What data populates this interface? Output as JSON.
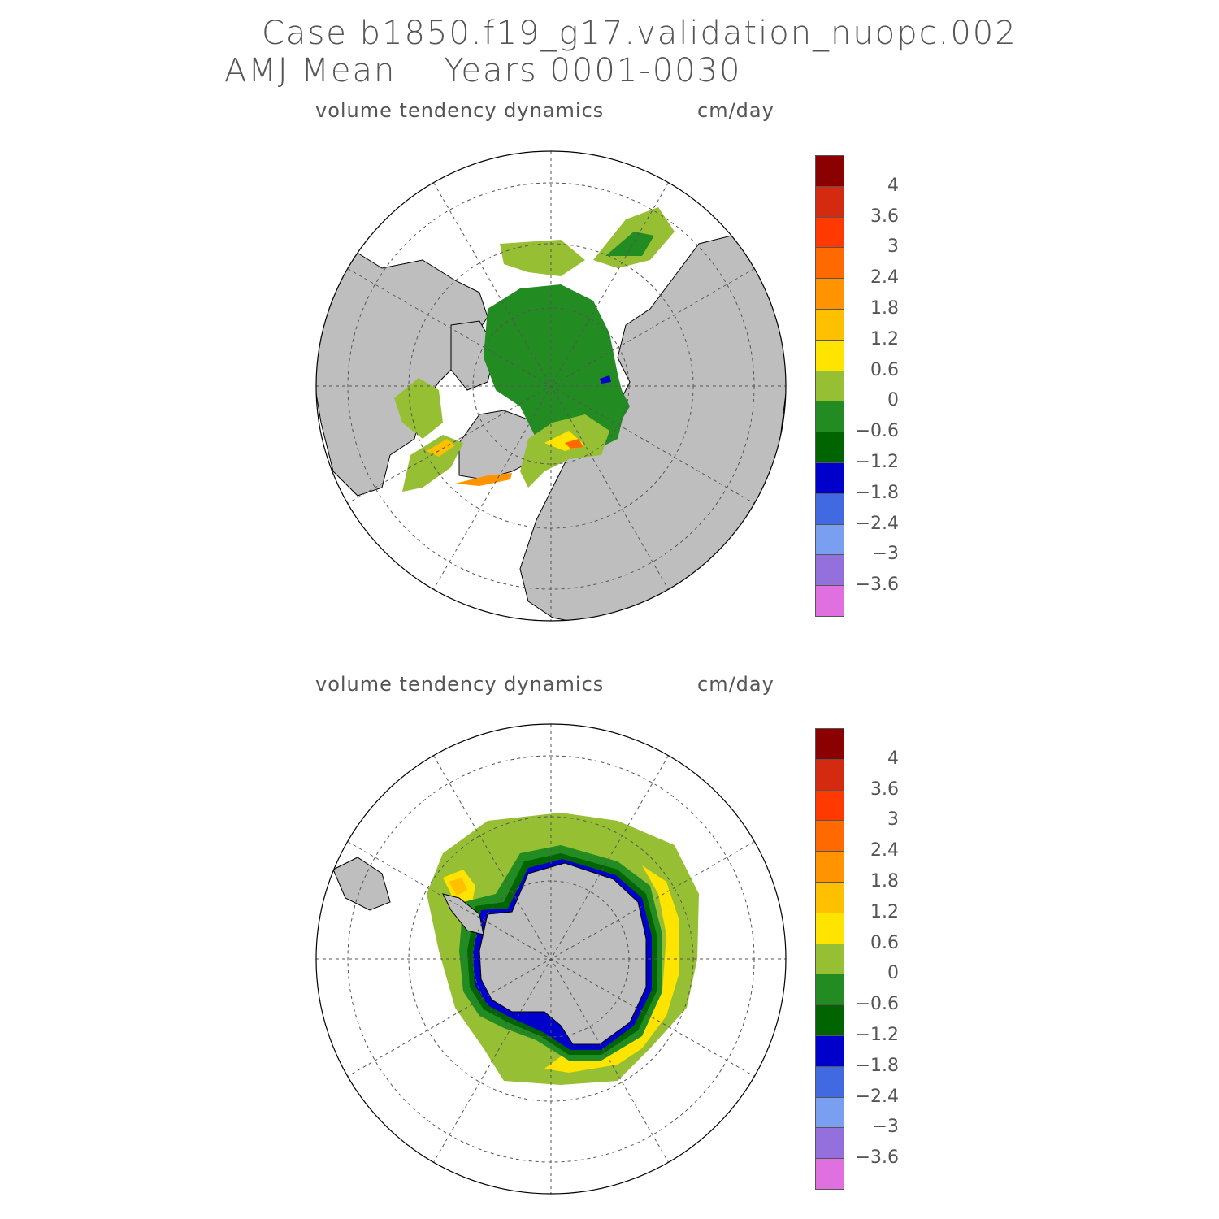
{
  "header": {
    "case_line": "Case b1850.f19_g17.validation_nuopc.002",
    "period_line": "AMJ Mean    Years 0001-0030"
  },
  "panels": [
    {
      "id": "north",
      "variable": "volume tendency dynamics",
      "units": "cm/day"
    },
    {
      "id": "south",
      "variable": "volume tendency dynamics",
      "units": "cm/day"
    }
  ],
  "colorbar": {
    "colors": [
      "#8b0000",
      "#d42a10",
      "#ff3a00",
      "#ff6a00",
      "#ff9400",
      "#ffc000",
      "#ffe400",
      "#97bf33",
      "#228b22",
      "#006400",
      "#0000cd",
      "#4169e1",
      "#7b9ff0",
      "#9370db",
      "#e070e0"
    ],
    "tick_labels": [
      "4",
      "3.6",
      "3",
      "2.4",
      "1.8",
      "1.2",
      "0.6",
      "0",
      "−0.6",
      "−1.2",
      "−1.8",
      "−2.4",
      "−3",
      "−3.6"
    ]
  },
  "colors": {
    "land": "#bebebe",
    "ocean": "#ffffff",
    "grid": "#555555"
  }
}
